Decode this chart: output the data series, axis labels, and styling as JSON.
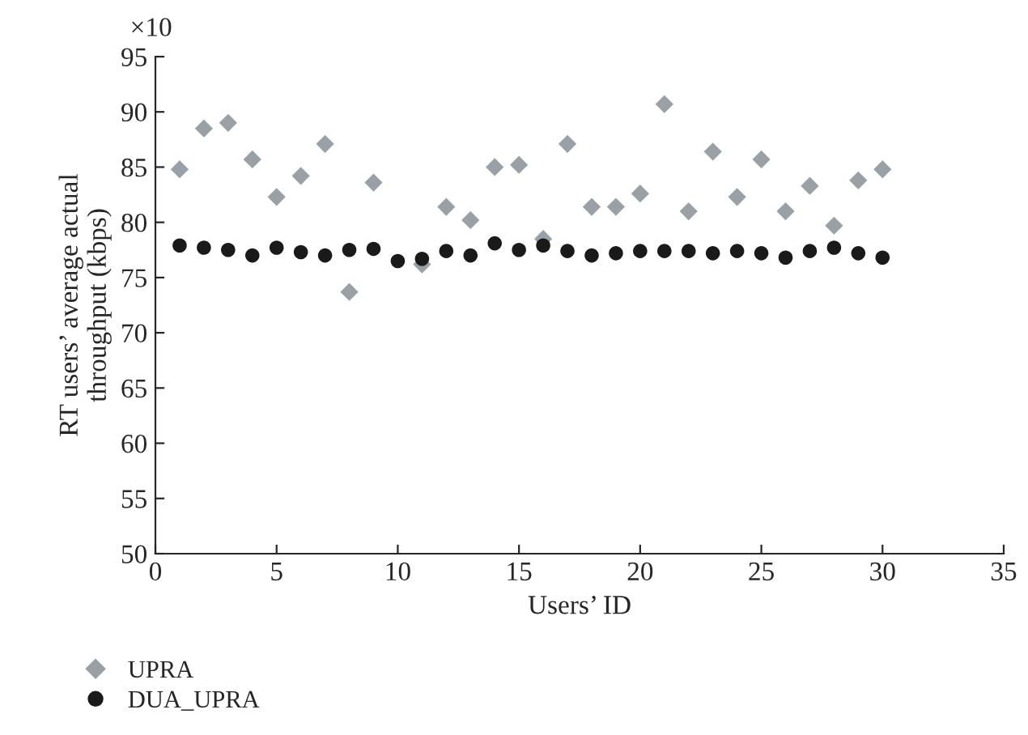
{
  "chart_data": {
    "type": "scatter",
    "xlabel": "Users’ ID",
    "ylabel": "RT users’ average actual\nthroughput (kbps)",
    "annotations": [
      "×10"
    ],
    "x": [
      1,
      2,
      3,
      4,
      5,
      6,
      7,
      8,
      9,
      10,
      11,
      12,
      13,
      14,
      15,
      16,
      17,
      18,
      19,
      20,
      21,
      22,
      23,
      24,
      25,
      26,
      27,
      28,
      29,
      30
    ],
    "series": [
      {
        "name": "UPRA",
        "color": "#99a0a6",
        "marker": "diamond",
        "values": [
          84.8,
          88.5,
          89.0,
          85.7,
          82.3,
          84.2,
          87.1,
          73.7,
          83.6,
          null,
          76.2,
          81.4,
          80.2,
          85.0,
          85.2,
          78.5,
          87.1,
          81.4,
          81.4,
          82.6,
          90.7,
          81.0,
          86.4,
          82.3,
          85.7,
          81.0,
          83.3,
          79.7,
          83.8,
          84.8
        ]
      },
      {
        "name": "DUA_UPRA",
        "color": "#1a1a1a",
        "marker": "circle",
        "values": [
          77.9,
          77.7,
          77.5,
          77.0,
          77.7,
          77.3,
          77.0,
          77.5,
          77.6,
          76.5,
          76.7,
          77.4,
          77.0,
          78.1,
          77.5,
          77.9,
          77.4,
          77.0,
          77.2,
          77.4,
          77.4,
          77.4,
          77.2,
          77.4,
          77.2,
          76.8,
          77.4,
          77.7,
          77.2,
          76.8
        ]
      }
    ],
    "xlim": [
      0,
      35
    ],
    "xticks": [
      0,
      5,
      10,
      15,
      20,
      25,
      30,
      35
    ],
    "ylim": [
      50,
      95
    ],
    "yticks": [
      50,
      55,
      60,
      65,
      70,
      75,
      80,
      85,
      90,
      95
    ],
    "grid": false,
    "legend": "bottom left"
  }
}
